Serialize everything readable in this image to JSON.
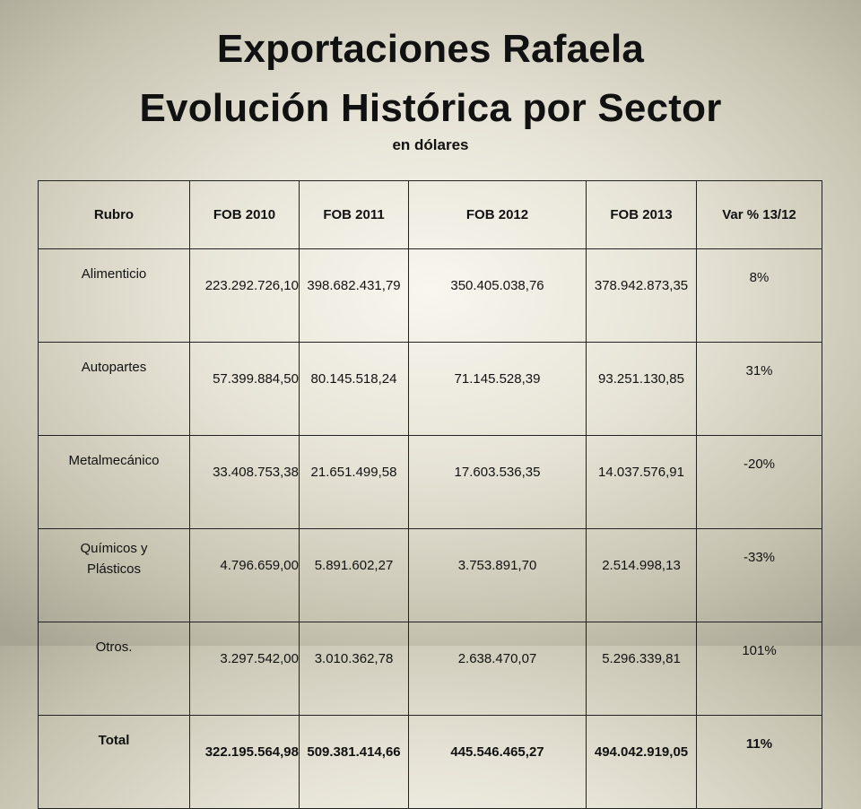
{
  "title_line1": "Exportaciones Rafaela",
  "title_line2": "Evolución Histórica por Sector",
  "subtitle": "en dólares",
  "table": {
    "headers": [
      "Rubro",
      "FOB 2010",
      "FOB 2011",
      "FOB 2012",
      "FOB 2013",
      "Var % 13/12"
    ],
    "rows": [
      {
        "rubro": "Alimenticio",
        "fob2010": "223.292.726,10",
        "fob2011": "398.682.431,79",
        "fob2012": "350.405.038,76",
        "fob2013": "378.942.873,35",
        "var": "8%"
      },
      {
        "rubro": "Autopartes",
        "fob2010": "57.399.884,50",
        "fob2011": "80.145.518,24",
        "fob2012": "71.145.528,39",
        "fob2013": "93.251.130,85",
        "var": "31%"
      },
      {
        "rubro": "Metalmecánico",
        "fob2010": "33.408.753,38",
        "fob2011": "21.651.499,58",
        "fob2012": "17.603.536,35",
        "fob2013": "14.037.576,91",
        "var": "-20%"
      },
      {
        "rubro_line1": "Químicos y",
        "rubro_line2": "Plásticos",
        "fob2010": "4.796.659,00",
        "fob2011": "5.891.602,27",
        "fob2012": "3.753.891,70",
        "fob2013": "2.514.998,13",
        "var": "-33%"
      },
      {
        "rubro": "Otros.",
        "fob2010": "3.297.542,00",
        "fob2011": "3.010.362,78",
        "fob2012": "2.638.470,07",
        "fob2013": "5.296.339,81",
        "var": "101%"
      }
    ],
    "total": {
      "rubro": "Total",
      "fob2010": "322.195.564,98",
      "fob2011": "509.381.414,66",
      "fob2012": "445.546.465,27",
      "fob2013": "494.042.919,05",
      "var": "11%"
    }
  }
}
